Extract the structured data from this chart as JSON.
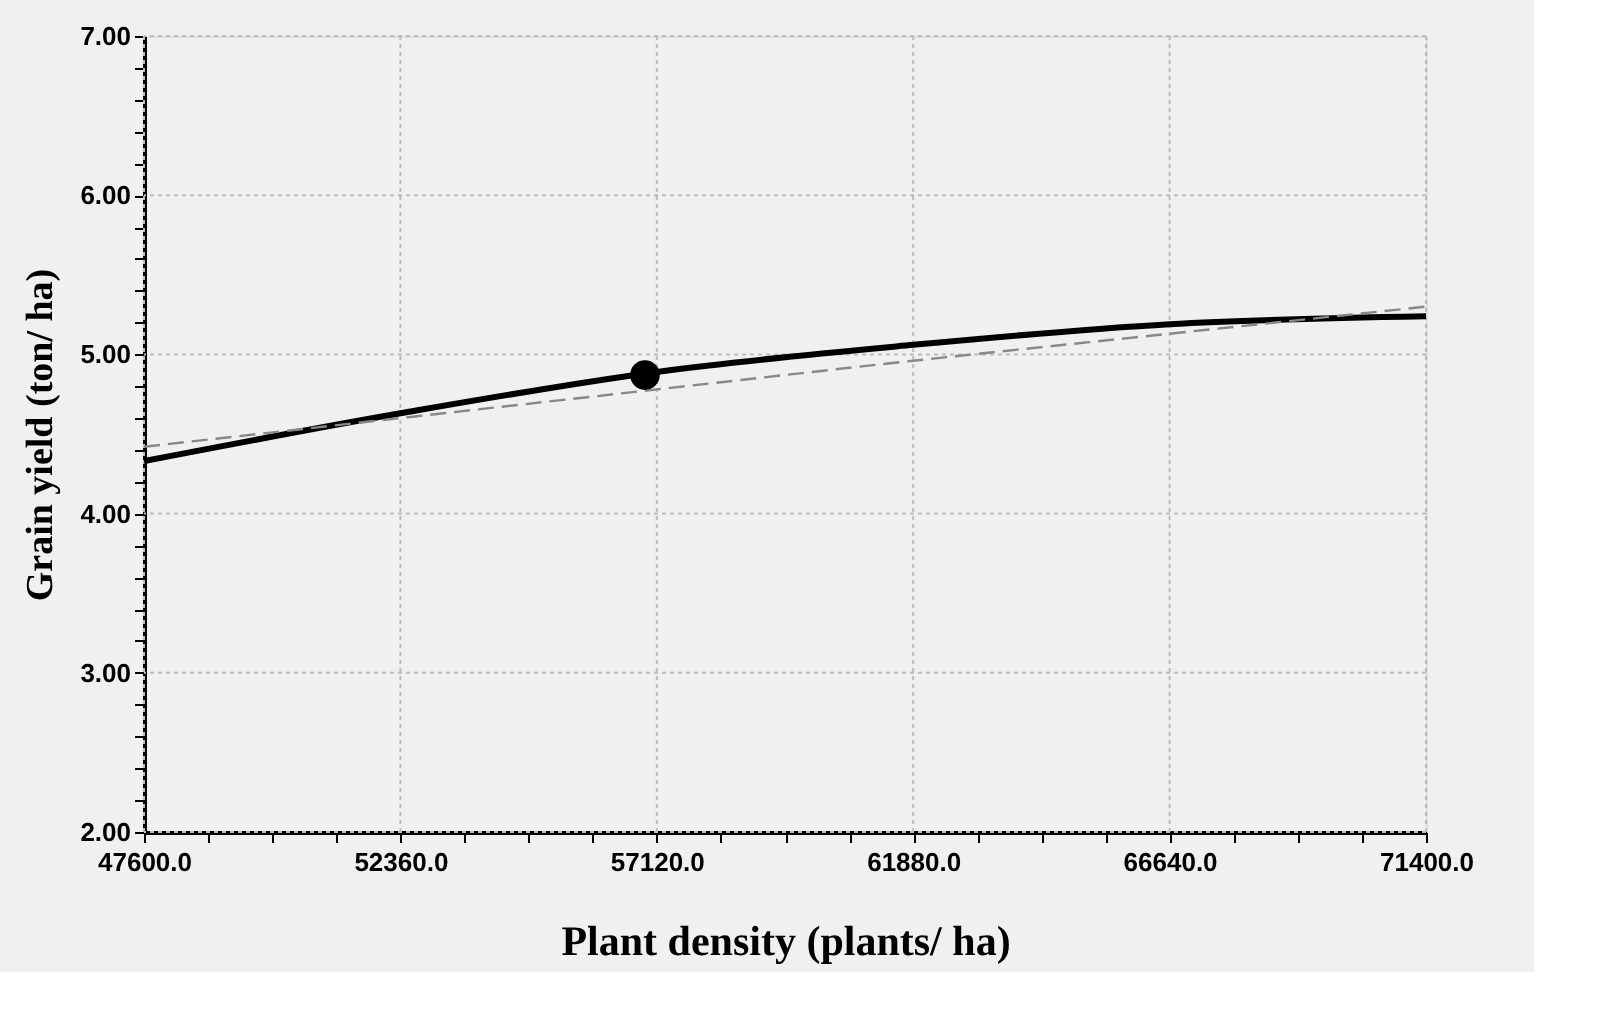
{
  "chart_data": {
    "type": "line",
    "xlabel": "Plant density (plants/ ha)",
    "ylabel": "Grain yield (ton/ ha)",
    "xlim": [
      47600,
      71400
    ],
    "ylim": [
      2,
      7
    ],
    "xticks": [
      {
        "value": 47600,
        "label": "47600.0"
      },
      {
        "value": 48790,
        "label": null
      },
      {
        "value": 49980,
        "label": null
      },
      {
        "value": 51170,
        "label": null
      },
      {
        "value": 52360,
        "label": "52360.0"
      },
      {
        "value": 53550,
        "label": null
      },
      {
        "value": 54740,
        "label": null
      },
      {
        "value": 55930,
        "label": null
      },
      {
        "value": 57120,
        "label": "57120.0"
      },
      {
        "value": 58310,
        "label": null
      },
      {
        "value": 59500,
        "label": null
      },
      {
        "value": 60690,
        "label": null
      },
      {
        "value": 61880,
        "label": "61880.0"
      },
      {
        "value": 63070,
        "label": null
      },
      {
        "value": 64260,
        "label": null
      },
      {
        "value": 65450,
        "label": null
      },
      {
        "value": 66640,
        "label": "66640.0"
      },
      {
        "value": 67830,
        "label": null
      },
      {
        "value": 69020,
        "label": null
      },
      {
        "value": 70210,
        "label": null
      },
      {
        "value": 71400,
        "label": "71400.0"
      }
    ],
    "yticks": [
      {
        "value": 2,
        "label": "2.00"
      },
      {
        "value": 2.2,
        "label": null
      },
      {
        "value": 2.4,
        "label": null
      },
      {
        "value": 2.6,
        "label": null
      },
      {
        "value": 2.8,
        "label": null
      },
      {
        "value": 3,
        "label": "3.00"
      },
      {
        "value": 3.2,
        "label": null
      },
      {
        "value": 3.4,
        "label": null
      },
      {
        "value": 3.6,
        "label": null
      },
      {
        "value": 3.8,
        "label": null
      },
      {
        "value": 4,
        "label": "4.00"
      },
      {
        "value": 4.2,
        "label": null
      },
      {
        "value": 4.4,
        "label": null
      },
      {
        "value": 4.6,
        "label": null
      },
      {
        "value": 4.8,
        "label": null
      },
      {
        "value": 5,
        "label": "5.00"
      },
      {
        "value": 5.2,
        "label": null
      },
      {
        "value": 5.4,
        "label": null
      },
      {
        "value": 5.6,
        "label": null
      },
      {
        "value": 5.8,
        "label": null
      },
      {
        "value": 6,
        "label": "6.00"
      },
      {
        "value": 6.2,
        "label": null
      },
      {
        "value": 6.4,
        "label": null
      },
      {
        "value": 6.6,
        "label": null
      },
      {
        "value": 6.8,
        "label": null
      },
      {
        "value": 7,
        "label": "7.00"
      }
    ],
    "grid": true,
    "series": [
      {
        "color": "#000000",
        "line_style": "solid",
        "x": [
          47600,
          52360,
          57120,
          61880,
          66640,
          71400
        ],
        "values": [
          4.33,
          4.63,
          4.89,
          5.06,
          5.19,
          5.24
        ]
      },
      {
        "color": "#888888",
        "line_style": "dashed",
        "x": [
          47600,
          52360,
          57120,
          61880,
          66640,
          71400
        ],
        "values": [
          4.42,
          4.6,
          4.78,
          4.96,
          5.13,
          5.3
        ]
      },
      {
        "type": "scatter",
        "color": "#000000",
        "marker": "circle",
        "x": [
          56900
        ],
        "values": [
          4.87
        ]
      }
    ]
  }
}
